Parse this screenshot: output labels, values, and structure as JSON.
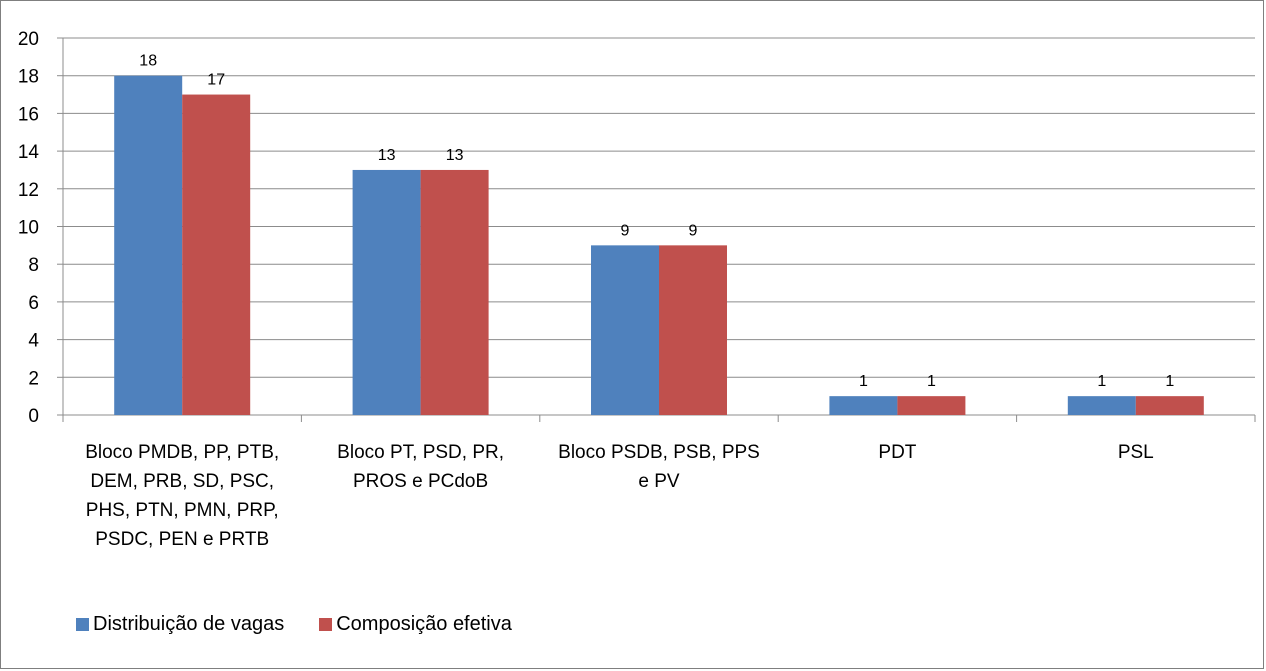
{
  "chart_data": {
    "type": "bar",
    "categories": [
      "Bloco PMDB, PP, PTB, DEM, PRB, SD, PSC, PHS, PTN, PMN, PRP, PSDC, PEN e PRTB",
      "Bloco PT, PSD, PR, PROS e PCdoB",
      "Bloco PSDB, PSB, PPS e PV",
      "PDT",
      "PSL"
    ],
    "category_lines": [
      [
        "Bloco PMDB, PP, PTB,",
        "DEM, PRB, SD, PSC,",
        "PHS, PTN, PMN, PRP,",
        "PSDC, PEN e PRTB"
      ],
      [
        "Bloco PT, PSD, PR,",
        "PROS e PCdoB"
      ],
      [
        "Bloco PSDB, PSB, PPS",
        "e PV"
      ],
      [
        "PDT"
      ],
      [
        "PSL"
      ]
    ],
    "series": [
      {
        "name": "Distribuição de vagas",
        "color": "#4f81bd",
        "values": [
          18,
          13,
          9,
          1,
          1
        ]
      },
      {
        "name": "Composição efetiva",
        "color": "#c0504d",
        "values": [
          17,
          13,
          9,
          1,
          1
        ]
      }
    ],
    "ylim": [
      0,
      20
    ],
    "yticks": [
      "0",
      "2",
      "4",
      "6",
      "8",
      "10",
      "12",
      "14",
      "16",
      "18",
      "20"
    ],
    "grid": true,
    "legend_position": "bottom-left",
    "data_labels": true,
    "title": "",
    "xlabel": "",
    "ylabel": ""
  }
}
